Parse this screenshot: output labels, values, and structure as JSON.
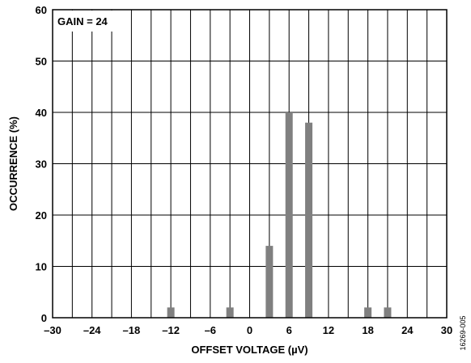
{
  "chart_data": {
    "type": "bar",
    "xlabel": "OFFSET VOLTAGE (µV)",
    "ylabel": "OCCURRENCE (%)",
    "xlim": [
      -30,
      30
    ],
    "ylim": [
      0,
      60
    ],
    "x_ticks": [
      -30,
      -24,
      -18,
      -12,
      -6,
      0,
      6,
      12,
      18,
      24,
      30
    ],
    "x_tick_labels": [
      "–30",
      "–24",
      "–18",
      "–12",
      "–6",
      "0",
      "6",
      "12",
      "18",
      "24",
      "30"
    ],
    "y_ticks": [
      0,
      10,
      20,
      30,
      40,
      50,
      60
    ],
    "y_tick_labels": [
      "0",
      "10",
      "20",
      "30",
      "40",
      "50",
      "60"
    ],
    "grid": true,
    "bar_color": "#808080",
    "x": [
      -12,
      -3,
      3,
      6,
      9,
      18,
      21
    ],
    "values": [
      2,
      2,
      14,
      40,
      38,
      2,
      2
    ],
    "annotations": [
      "GAIN = 24"
    ],
    "figure_id": "16269-005"
  }
}
